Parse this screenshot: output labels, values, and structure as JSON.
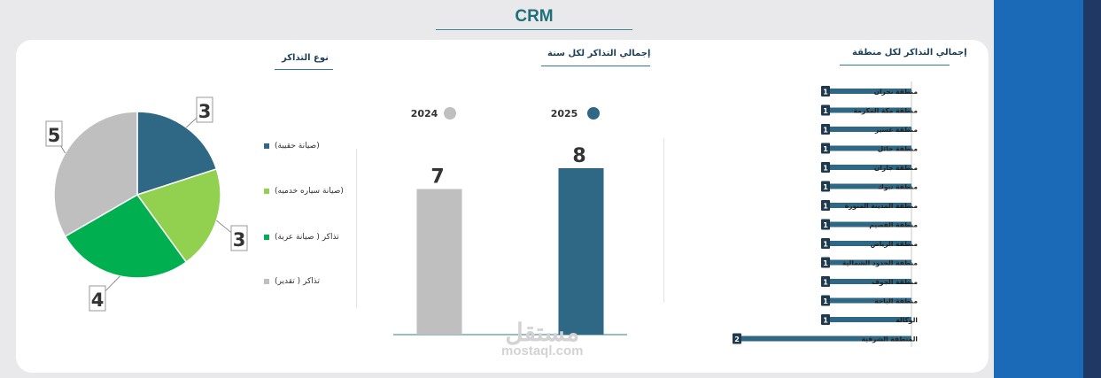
{
  "page": {
    "title": "CRM"
  },
  "sections": {
    "pie_title": "نوع التذاكر",
    "year_title": "إجمالي التذاكر لكل سنة",
    "region_title": "إجمالي التذاكر لكل منطقة"
  },
  "watermark": {
    "ar": "مستقل",
    "en": "mostaql.com"
  },
  "colors": {
    "accent": "#1f6f7a",
    "blue": "#1a6ab8",
    "navy": "#1f3864",
    "bar2025": "#2e6884",
    "bar2024": "#bfbfbf"
  },
  "chart_data": [
    {
      "type": "pie",
      "title": "نوع التذاكر",
      "slices": [
        {
          "label": "(صيانة حقيبة)",
          "value": 3,
          "color": "#2e6884"
        },
        {
          "label": "(صيانة سياره خدميه)",
          "value": 3,
          "color": "#92d050"
        },
        {
          "label": "تذاكر ( صيانة عربة)",
          "value": 4,
          "color": "#00b050"
        },
        {
          "label": "تذاكر ( تقدير)",
          "value": 5,
          "color": "#bfbfbf"
        }
      ],
      "legend": "right"
    },
    {
      "type": "bar",
      "title": "إجمالي التذاكر لكل سنة",
      "categories": [
        "2024",
        "2025"
      ],
      "values": [
        7,
        8
      ],
      "colors": [
        "#bfbfbf",
        "#2e6884"
      ],
      "legend": "top"
    },
    {
      "type": "bar",
      "title": "إجمالي التذاكر لكل منطقة",
      "orientation": "horizontal",
      "categories": [
        "منطقة نجران",
        "منطقة مكة المكرمة",
        "منطقة عسير",
        "منطقة حائل",
        "منطقة جازان",
        "منطقة تبوك",
        "منطقة المدينة المنورة",
        "منطقة القصيم",
        "منطقة الرياض",
        "منطقة الحدود الشمالية",
        "منطقة الجوف",
        "منطقة الباحة",
        "الوكالة",
        "المنطقة الشرقية"
      ],
      "values": [
        1,
        1,
        1,
        1,
        1,
        1,
        1,
        1,
        1,
        1,
        1,
        1,
        1,
        2
      ],
      "color": "#2e6884"
    }
  ]
}
